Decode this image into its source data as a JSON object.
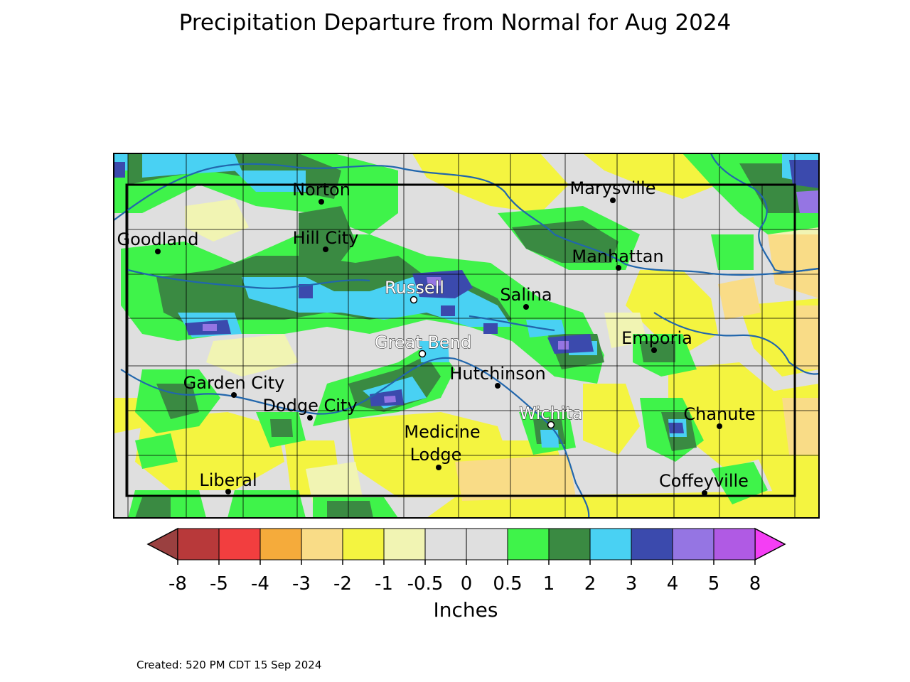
{
  "title": "Precipitation Departure from Normal for Aug 2024",
  "created": "Created: 520 PM CDT 15 Sep 2024",
  "legend": {
    "unit_label": "Inches",
    "tick_labels": [
      "-8",
      "-5",
      "-4",
      "-3",
      "-2",
      "-1",
      "-0.5",
      "0",
      "0.5",
      "1",
      "2",
      "3",
      "4",
      "5",
      "8"
    ],
    "bins": [
      {
        "from": "-8",
        "to": "-5",
        "color": "#b8393a"
      },
      {
        "from": "-5",
        "to": "-4",
        "color": "#f23e3f"
      },
      {
        "from": "-4",
        "to": "-3",
        "color": "#f5ab3b"
      },
      {
        "from": "-3",
        "to": "-2",
        "color": "#f9dc87"
      },
      {
        "from": "-2",
        "to": "-1",
        "color": "#f4f440"
      },
      {
        "from": "-1",
        "to": "-0.5",
        "color": "#f1f4b3"
      },
      {
        "from": "-0.5",
        "to": "0",
        "color": "#dfdfdf"
      },
      {
        "from": "0",
        "to": "0.5",
        "color": "#dfdfdf"
      },
      {
        "from": "0.5",
        "to": "1",
        "color": "#3ff34a"
      },
      {
        "from": "1",
        "to": "2",
        "color": "#3a8a42"
      },
      {
        "from": "2",
        "to": "3",
        "color": "#49d1f3"
      },
      {
        "from": "3",
        "to": "4",
        "color": "#3b4aad"
      },
      {
        "from": "4",
        "to": "5",
        "color": "#9575e3"
      },
      {
        "from": "5",
        "to": "8",
        "color": "#b05ae4"
      }
    ],
    "under_color": "#9a4040",
    "over_color": "#f43ef4"
  },
  "cities": [
    {
      "name": "Norton",
      "style": "normal"
    },
    {
      "name": "Marysville",
      "style": "normal"
    },
    {
      "name": "Goodland",
      "style": "normal"
    },
    {
      "name": "Hill City",
      "style": "normal"
    },
    {
      "name": "Manhattan",
      "style": "normal"
    },
    {
      "name": "Russell",
      "style": "halo"
    },
    {
      "name": "Salina",
      "style": "normal"
    },
    {
      "name": "Emporia",
      "style": "normal"
    },
    {
      "name": "Great Bend",
      "style": "halo"
    },
    {
      "name": "Hutchinson",
      "style": "normal"
    },
    {
      "name": "Garden City",
      "style": "normal"
    },
    {
      "name": "Dodge City",
      "style": "normal"
    },
    {
      "name": "Wichita",
      "style": "halo"
    },
    {
      "name": "Chanute",
      "style": "normal"
    },
    {
      "name": "Medicine",
      "style": "normal"
    },
    {
      "name": "Lodge",
      "style": "normal"
    },
    {
      "name": "Liberal",
      "style": "normal"
    },
    {
      "name": "Coffeyville",
      "style": "normal"
    }
  ]
}
